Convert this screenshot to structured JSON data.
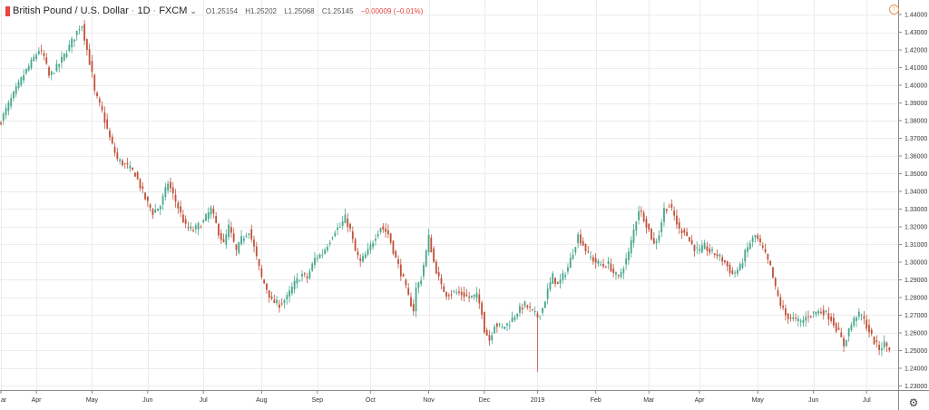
{
  "header": {
    "symbol": "British Pound / U.S. Dollar",
    "interval": "1D",
    "source": "FXCM",
    "open": "O1.25154",
    "high": "H1.25202",
    "low": "L1.25068",
    "close": "C1.25145",
    "change": "−0.00009 (−0.01%)"
  },
  "colors": {
    "up": "#46a68d",
    "down": "#c0513a",
    "grid": "#ececec",
    "axis": "#8a8a8a",
    "text": "#333333"
  },
  "icons": {
    "alert": "alert-icon",
    "settings": "gear-icon",
    "dropdown": "chevron-down-icon"
  },
  "chart_data": {
    "type": "candlestick",
    "symbol": "British Pound / U.S. Dollar",
    "interval": "1D",
    "ylim": [
      1.23,
      1.44
    ],
    "y_ticks": [
      "1.44000",
      "1.43000",
      "1.42000",
      "1.41000",
      "1.40000",
      "1.39000",
      "1.38000",
      "1.37000",
      "1.36000",
      "1.35000",
      "1.34000",
      "1.33000",
      "1.32000",
      "1.31000",
      "1.30000",
      "1.29000",
      "1.28000",
      "1.27000",
      "1.26000",
      "1.25000",
      "1.24000",
      "1.23000"
    ],
    "x_ticks": [
      "ar",
      "Apr",
      "May",
      "Jun",
      "Jul",
      "Aug",
      "Sep",
      "Oct",
      "Nov",
      "Dec",
      "2019",
      "Feb",
      "Mar",
      "Apr",
      "May",
      "Jun",
      "Jul"
    ],
    "x_tick_bars": [
      0,
      14,
      36,
      58,
      80,
      103,
      125,
      146,
      169,
      191,
      212,
      235,
      256,
      276,
      299,
      321,
      342
    ],
    "path": [
      [
        0,
        1.38
      ],
      [
        4,
        1.392
      ],
      [
        9,
        1.406
      ],
      [
        15,
        1.42
      ],
      [
        17,
        1.416
      ],
      [
        19,
        1.405
      ],
      [
        23,
        1.412
      ],
      [
        27,
        1.422
      ],
      [
        31,
        1.433
      ],
      [
        32,
        1.434
      ],
      [
        34,
        1.42
      ],
      [
        36,
        1.406
      ],
      [
        37,
        1.396
      ],
      [
        40,
        1.385
      ],
      [
        43,
        1.37
      ],
      [
        46,
        1.358
      ],
      [
        50,
        1.354
      ],
      [
        53,
        1.35
      ],
      [
        57,
        1.336
      ],
      [
        60,
        1.328
      ],
      [
        63,
        1.332
      ],
      [
        66,
        1.345
      ],
      [
        68,
        1.338
      ],
      [
        70,
        1.331
      ],
      [
        73,
        1.32
      ],
      [
        76,
        1.318
      ],
      [
        80,
        1.323
      ],
      [
        83,
        1.33
      ],
      [
        86,
        1.317
      ],
      [
        88,
        1.31
      ],
      [
        90,
        1.32
      ],
      [
        93,
        1.306
      ],
      [
        95,
        1.313
      ],
      [
        98,
        1.318
      ],
      [
        100,
        1.308
      ],
      [
        103,
        1.291
      ],
      [
        105,
        1.285
      ],
      [
        107,
        1.278
      ],
      [
        110,
        1.276
      ],
      [
        113,
        1.28
      ],
      [
        116,
        1.288
      ],
      [
        119,
        1.293
      ],
      [
        121,
        1.291
      ],
      [
        124,
        1.302
      ],
      [
        127,
        1.305
      ],
      [
        129,
        1.31
      ],
      [
        132,
        1.318
      ],
      [
        134,
        1.32
      ],
      [
        136,
        1.325
      ],
      [
        138,
        1.318
      ],
      [
        140,
        1.306
      ],
      [
        142,
        1.3
      ],
      [
        145,
        1.306
      ],
      [
        148,
        1.315
      ],
      [
        150,
        1.32
      ],
      [
        153,
        1.316
      ],
      [
        156,
        1.302
      ],
      [
        159,
        1.29
      ],
      [
        161,
        1.28
      ],
      [
        163,
        1.273
      ],
      [
        164,
        1.285
      ],
      [
        166,
        1.291
      ],
      [
        168,
        1.306
      ],
      [
        169,
        1.314
      ],
      [
        171,
        1.3
      ],
      [
        174,
        1.286
      ],
      [
        176,
        1.282
      ],
      [
        179,
        1.283
      ],
      [
        182,
        1.282
      ],
      [
        185,
        1.28
      ],
      [
        188,
        1.281
      ],
      [
        190,
        1.272
      ],
      [
        191,
        1.262
      ],
      [
        193,
        1.256
      ],
      [
        195,
        1.265
      ],
      [
        198,
        1.263
      ],
      [
        201,
        1.266
      ],
      [
        204,
        1.272
      ],
      [
        207,
        1.276
      ],
      [
        210,
        1.272
      ],
      [
        212,
        1.269
      ],
      [
        214,
        1.274
      ],
      [
        216,
        1.284
      ],
      [
        218,
        1.292
      ],
      [
        220,
        1.287
      ],
      [
        222,
        1.292
      ],
      [
        224,
        1.297
      ],
      [
        226,
        1.306
      ],
      [
        228,
        1.315
      ],
      [
        230,
        1.31
      ],
      [
        232,
        1.304
      ],
      [
        235,
        1.3
      ],
      [
        238,
        1.298
      ],
      [
        240,
        1.299
      ],
      [
        242,
        1.294
      ],
      [
        244,
        1.291
      ],
      [
        246,
        1.298
      ],
      [
        248,
        1.305
      ],
      [
        250,
        1.318
      ],
      [
        252,
        1.33
      ],
      [
        254,
        1.325
      ],
      [
        256,
        1.318
      ],
      [
        258,
        1.31
      ],
      [
        260,
        1.316
      ],
      [
        262,
        1.33
      ],
      [
        264,
        1.332
      ],
      [
        266,
        1.326
      ],
      [
        268,
        1.318
      ],
      [
        270,
        1.318
      ],
      [
        272,
        1.312
      ],
      [
        274,
        1.308
      ],
      [
        276,
        1.306
      ],
      [
        278,
        1.309
      ],
      [
        280,
        1.306
      ],
      [
        283,
        1.304
      ],
      [
        286,
        1.3
      ],
      [
        289,
        1.293
      ],
      [
        292,
        1.297
      ],
      [
        294,
        1.305
      ],
      [
        296,
        1.311
      ],
      [
        298,
        1.315
      ],
      [
        300,
        1.31
      ],
      [
        302,
        1.304
      ],
      [
        304,
        1.297
      ],
      [
        306,
        1.285
      ],
      [
        308,
        1.276
      ],
      [
        310,
        1.27
      ],
      [
        313,
        1.268
      ],
      [
        316,
        1.266
      ],
      [
        319,
        1.27
      ],
      [
        322,
        1.272
      ],
      [
        325,
        1.272
      ],
      [
        328,
        1.268
      ],
      [
        331,
        1.26
      ],
      [
        333,
        1.253
      ],
      [
        335,
        1.262
      ],
      [
        338,
        1.27
      ],
      [
        340,
        1.27
      ],
      [
        343,
        1.261
      ],
      [
        345,
        1.255
      ],
      [
        347,
        1.251
      ],
      [
        349,
        1.254
      ],
      [
        351,
        1.2514
      ]
    ]
  }
}
